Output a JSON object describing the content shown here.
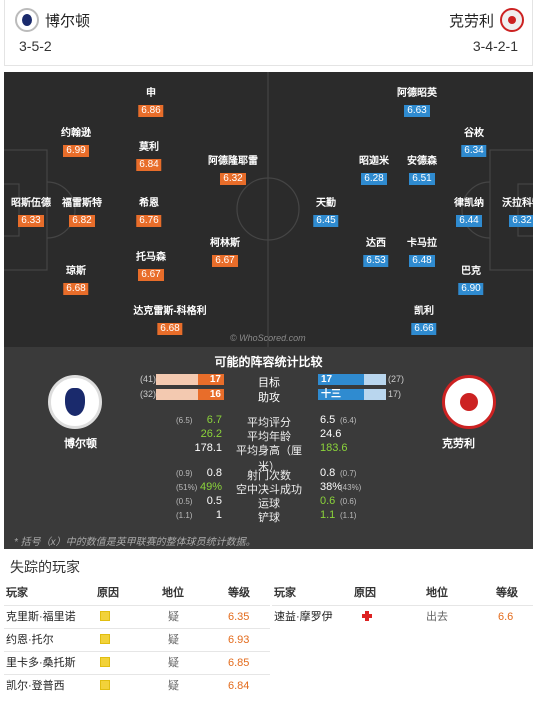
{
  "header": {
    "home_team": "博尔顿",
    "away_team": "克劳利",
    "home_formation": "3-5-2",
    "away_formation": "3-4-2-1"
  },
  "pitch": {
    "watermark": "© WhoScored.com",
    "home_players": [
      {
        "name": "申",
        "rating": "6.86"
      },
      {
        "name": "约翰逊",
        "rating": "6.99"
      },
      {
        "name": "莫利",
        "rating": "6.84"
      },
      {
        "name": "阿德隆耶雷",
        "rating": "6.32"
      },
      {
        "name": "昭斯伍德",
        "rating": "6.33"
      },
      {
        "name": "福雷斯特",
        "rating": "6.82"
      },
      {
        "name": "希恩",
        "rating": "6.76"
      },
      {
        "name": "柯林斯",
        "rating": "6.67"
      },
      {
        "name": "托马森",
        "rating": "6.67"
      },
      {
        "name": "琼斯",
        "rating": "6.68"
      },
      {
        "name": "达克雷斯-科格利",
        "rating": "6.68"
      }
    ],
    "away_players": [
      {
        "name": "阿德昭英",
        "rating": "6.63"
      },
      {
        "name": "谷枚",
        "rating": "6.34"
      },
      {
        "name": "昭迦米",
        "rating": "6.28"
      },
      {
        "name": "安德森",
        "rating": "6.51"
      },
      {
        "name": "天勤",
        "rating": "6.45"
      },
      {
        "name": "律凯纳",
        "rating": "6.44"
      },
      {
        "name": "沃拉科特",
        "rating": "6.32"
      },
      {
        "name": "达西",
        "rating": "6.53"
      },
      {
        "name": "卡马拉",
        "rating": "6.48"
      },
      {
        "name": "巴克",
        "rating": "6.90"
      },
      {
        "name": "凯利",
        "rating": "6.66"
      }
    ]
  },
  "stats": {
    "title": "可能的阵容统计比较",
    "home_team": "博尔顿",
    "away_team": "克劳利",
    "bars": [
      {
        "label": "目标",
        "home": 17,
        "home_sub": "(41)",
        "away": 17,
        "away_sub": "(27)"
      },
      {
        "label": "助攻",
        "home": 16,
        "home_sub": "(32)",
        "away": "十三",
        "away_sub": "17)"
      }
    ],
    "rows": [
      {
        "label": "平均评分",
        "home_sub": "(6.5)",
        "home": "6.7",
        "home_green": true,
        "away": "6.5",
        "away_sub": "(6.4)",
        "away_green": false
      },
      {
        "label": "平均年龄",
        "home_sub": "",
        "home": "26.2",
        "home_green": true,
        "away": "24.6",
        "away_sub": "",
        "away_green": false
      },
      {
        "label": "平均身高（厘米）",
        "home_sub": "",
        "home": "178.1",
        "home_green": false,
        "away": "183.6",
        "away_sub": "",
        "away_green": true
      },
      {
        "label": "射门次数",
        "home_sub": "(0.9)",
        "home": "0.8",
        "home_green": false,
        "away": "0.8",
        "away_sub": "(0.7)",
        "away_green": false
      },
      {
        "label": "空中决斗成功",
        "home_sub": "(51%)",
        "home": "49%",
        "home_green": true,
        "away": "38%",
        "away_sub": "(43%)",
        "away_green": false
      },
      {
        "label": "运球",
        "home_sub": "(0.5)",
        "home": "0.5",
        "home_green": false,
        "away": "0.6",
        "away_sub": "(0.6)",
        "away_green": true
      },
      {
        "label": "铲球",
        "home_sub": "(1.1)",
        "home": "1",
        "home_green": false,
        "away": "1.1",
        "away_sub": "(1.1)",
        "away_green": true
      }
    ],
    "footnote": "* 括号（x）中的数值是英甲联赛的整体球员统计数据。"
  },
  "missing": {
    "title": "失踪的玩家",
    "headers": {
      "player": "玩家",
      "reason": "原因",
      "status": "地位",
      "rating": "等级"
    },
    "home": [
      {
        "player": "克里斯·福里诺",
        "status": "疑",
        "rating": "6.35"
      },
      {
        "player": "约恩·托尔",
        "status": "疑",
        "rating": "6.93"
      },
      {
        "player": "里卡多·桑托斯",
        "status": "疑",
        "rating": "6.85"
      },
      {
        "player": "凯尔·登普西",
        "status": "疑",
        "rating": "6.84"
      }
    ],
    "away": [
      {
        "player": "速益·摩罗伊",
        "status": "出去",
        "rating": "6.6"
      }
    ]
  },
  "colors": {
    "home_rating": "#e86d2a",
    "away_rating": "#2f8bd0",
    "pitch": "#2b2b2b",
    "stats_bg": "#3a3a3a",
    "better_value": "#8bd43a"
  }
}
